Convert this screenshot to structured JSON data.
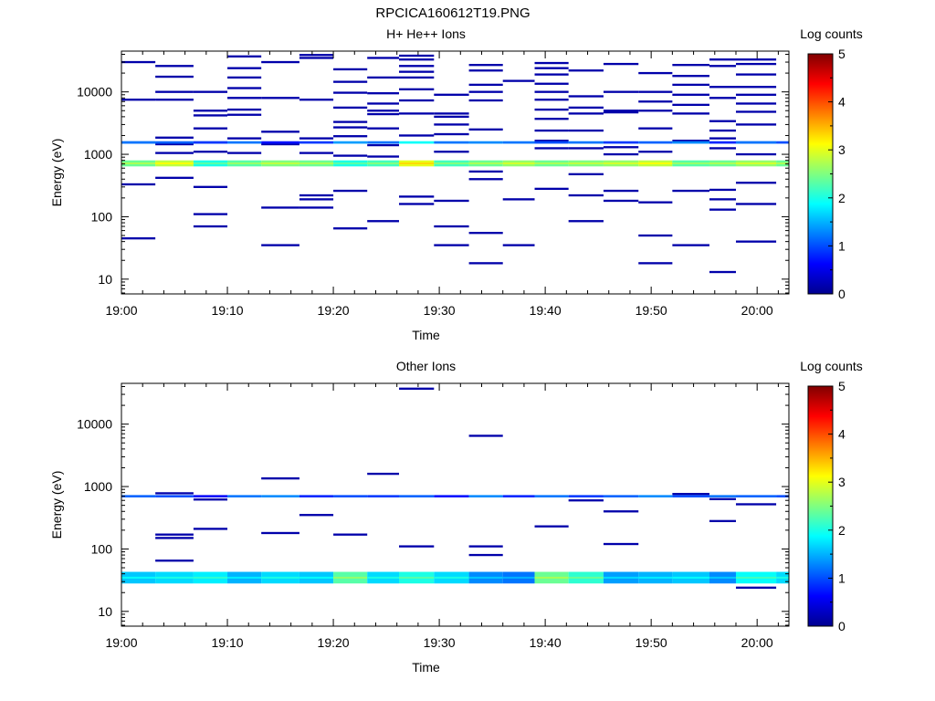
{
  "figure": {
    "title": "RPCICA160612T19.PNG"
  },
  "chart_data": [
    {
      "type": "heatmap",
      "title": "H+ He++ Ions",
      "xlabel": "Time",
      "ylabel": "Energy (eV)",
      "x_ticks": [
        "19:00",
        "19:10",
        "19:20",
        "19:30",
        "19:40",
        "19:50",
        "20:00"
      ],
      "x_range_minutes": [
        0,
        63
      ],
      "y_scale": "log",
      "y_ticks": [
        "10",
        "100",
        "1000",
        "10000"
      ],
      "y_range": [
        5.8,
        45000
      ],
      "colorbar": {
        "label": "Log counts",
        "ticks": [
          "0",
          "1",
          "2",
          "3",
          "4",
          "5"
        ],
        "range": [
          0,
          5
        ],
        "colormap": "jet"
      },
      "band": {
        "energy_range": [
          640,
          800
        ],
        "log_counts_by_bin": [
          2.4,
          2.8,
          2.0,
          2.3,
          2.5,
          2.4,
          2.0,
          2.2,
          3.0,
          2.2,
          2.4,
          2.6,
          2.4,
          2.5,
          2.6,
          2.8,
          2.3,
          2.4,
          2.6,
          2.4
        ]
      },
      "line_1550": {
        "energy_range": [
          1480,
          1620
        ],
        "log_counts_by_bin": [
          1.2,
          1.1,
          0.9,
          1.2,
          0.7,
          0.9,
          1.4,
          1.2,
          1.9,
          1.2,
          1.3,
          1.2,
          1.0,
          1.2,
          0.9,
          1.1,
          1.3,
          0.8,
          1.2,
          1.0
        ]
      },
      "time_bin_edges_minutes": [
        0,
        3.2,
        6.8,
        10.0,
        13.2,
        16.8,
        20.0,
        23.2,
        26.2,
        29.5,
        32.8,
        36.0,
        39.0,
        42.2,
        45.5,
        48.8,
        52.0,
        55.5,
        58.0,
        61.8,
        63.0
      ],
      "sparse_counts": [
        [
          0,
          30000
        ],
        [
          0,
          7500
        ],
        [
          0,
          1550
        ],
        [
          0,
          330
        ],
        [
          0,
          45
        ],
        [
          1,
          26000
        ],
        [
          1,
          17500
        ],
        [
          1,
          10000
        ],
        [
          1,
          7500
        ],
        [
          1,
          1850
        ],
        [
          1,
          1450
        ],
        [
          1,
          1050
        ],
        [
          1,
          420
        ],
        [
          2,
          10000
        ],
        [
          2,
          5000
        ],
        [
          2,
          4200
        ],
        [
          2,
          2600
        ],
        [
          2,
          1550
        ],
        [
          2,
          1100
        ],
        [
          2,
          300
        ],
        [
          2,
          110
        ],
        [
          2,
          70
        ],
        [
          3,
          37000
        ],
        [
          3,
          24000
        ],
        [
          3,
          17000
        ],
        [
          3,
          11500
        ],
        [
          3,
          8000
        ],
        [
          3,
          5200
        ],
        [
          3,
          4300
        ],
        [
          3,
          1800
        ],
        [
          3,
          1050
        ],
        [
          4,
          30000
        ],
        [
          4,
          8000
        ],
        [
          4,
          2300
        ],
        [
          4,
          1450
        ],
        [
          4,
          140
        ],
        [
          4,
          35
        ],
        [
          5,
          39000
        ],
        [
          5,
          35000
        ],
        [
          5,
          7500
        ],
        [
          5,
          1800
        ],
        [
          5,
          1050
        ],
        [
          5,
          220
        ],
        [
          5,
          190
        ],
        [
          5,
          140
        ],
        [
          6,
          23000
        ],
        [
          6,
          14500
        ],
        [
          6,
          9700
        ],
        [
          6,
          5600
        ],
        [
          6,
          3300
        ],
        [
          6,
          2700
        ],
        [
          6,
          1950
        ],
        [
          6,
          950
        ],
        [
          6,
          260
        ],
        [
          6,
          65
        ],
        [
          7,
          35000
        ],
        [
          7,
          17000
        ],
        [
          7,
          9500
        ],
        [
          7,
          6500
        ],
        [
          7,
          5000
        ],
        [
          7,
          4400
        ],
        [
          7,
          2600
        ],
        [
          7,
          1400
        ],
        [
          7,
          920
        ],
        [
          7,
          85
        ],
        [
          8,
          38000
        ],
        [
          8,
          33000
        ],
        [
          8,
          26000
        ],
        [
          8,
          21000
        ],
        [
          8,
          17000
        ],
        [
          8,
          11000
        ],
        [
          8,
          7300
        ],
        [
          8,
          4500
        ],
        [
          8,
          2000
        ],
        [
          8,
          210
        ],
        [
          8,
          160
        ],
        [
          9,
          9000
        ],
        [
          9,
          4500
        ],
        [
          9,
          4000
        ],
        [
          9,
          3000
        ],
        [
          9,
          2100
        ],
        [
          9,
          1100
        ],
        [
          9,
          180
        ],
        [
          9,
          70
        ],
        [
          9,
          35
        ],
        [
          10,
          27000
        ],
        [
          10,
          22000
        ],
        [
          10,
          13000
        ],
        [
          10,
          10000
        ],
        [
          10,
          7300
        ],
        [
          10,
          2500
        ],
        [
          10,
          530
        ],
        [
          10,
          400
        ],
        [
          10,
          55
        ],
        [
          10,
          18
        ],
        [
          11,
          15000
        ],
        [
          11,
          190
        ],
        [
          11,
          35
        ],
        [
          12,
          29000
        ],
        [
          12,
          24000
        ],
        [
          12,
          19000
        ],
        [
          12,
          13500
        ],
        [
          12,
          10000
        ],
        [
          12,
          7500
        ],
        [
          12,
          5200
        ],
        [
          12,
          3700
        ],
        [
          12,
          2400
        ],
        [
          12,
          1650
        ],
        [
          12,
          1250
        ],
        [
          12,
          280
        ],
        [
          13,
          22000
        ],
        [
          13,
          8500
        ],
        [
          13,
          5600
        ],
        [
          13,
          4500
        ],
        [
          13,
          2400
        ],
        [
          13,
          1250
        ],
        [
          13,
          480
        ],
        [
          13,
          220
        ],
        [
          13,
          85
        ],
        [
          14,
          28000
        ],
        [
          14,
          10000
        ],
        [
          14,
          5000
        ],
        [
          14,
          4700
        ],
        [
          14,
          1300
        ],
        [
          14,
          1000
        ],
        [
          14,
          260
        ],
        [
          14,
          180
        ],
        [
          15,
          20000
        ],
        [
          15,
          10000
        ],
        [
          15,
          7000
        ],
        [
          15,
          5000
        ],
        [
          15,
          2600
        ],
        [
          15,
          1100
        ],
        [
          15,
          170
        ],
        [
          15,
          50
        ],
        [
          15,
          18
        ],
        [
          16,
          27000
        ],
        [
          16,
          18000
        ],
        [
          16,
          13000
        ],
        [
          16,
          9000
        ],
        [
          16,
          6200
        ],
        [
          16,
          4500
        ],
        [
          16,
          1650
        ],
        [
          16,
          260
        ],
        [
          16,
          35
        ],
        [
          17,
          33000
        ],
        [
          17,
          26000
        ],
        [
          17,
          12000
        ],
        [
          17,
          8000
        ],
        [
          17,
          3400
        ],
        [
          17,
          2400
        ],
        [
          17,
          1800
        ],
        [
          17,
          1250
        ],
        [
          17,
          270
        ],
        [
          17,
          190
        ],
        [
          17,
          130
        ],
        [
          17,
          13
        ],
        [
          18,
          33000
        ],
        [
          18,
          28000
        ],
        [
          18,
          19000
        ],
        [
          18,
          12000
        ],
        [
          18,
          9000
        ],
        [
          18,
          6500
        ],
        [
          18,
          4800
        ],
        [
          18,
          3000
        ],
        [
          18,
          1550
        ],
        [
          18,
          1000
        ],
        [
          18,
          350
        ],
        [
          18,
          160
        ],
        [
          18,
          40
        ]
      ]
    },
    {
      "type": "heatmap",
      "title": "Other Ions",
      "xlabel": "Time",
      "ylabel": "Energy (eV)",
      "x_ticks": [
        "19:00",
        "19:10",
        "19:20",
        "19:30",
        "19:40",
        "19:50",
        "20:00"
      ],
      "x_range_minutes": [
        0,
        63
      ],
      "y_scale": "log",
      "y_ticks": [
        "10",
        "100",
        "1000",
        "10000"
      ],
      "y_range": [
        5.8,
        45000
      ],
      "colorbar": {
        "label": "Log counts",
        "ticks": [
          "0",
          "1",
          "2",
          "3",
          "4",
          "5"
        ],
        "range": [
          0,
          5
        ],
        "colormap": "jet"
      },
      "band": {
        "energy_range": [
          28,
          43
        ],
        "log_counts_by_bin": [
          1.6,
          1.7,
          1.8,
          1.5,
          1.7,
          1.6,
          2.3,
          1.7,
          2.0,
          1.7,
          1.3,
          1.2,
          2.4,
          2.1,
          1.4,
          1.5,
          1.6,
          1.3,
          1.9,
          1.7
        ]
      },
      "line_700": {
        "energy_range": [
          670,
          730
        ],
        "log_counts_by_bin": [
          1.1,
          1.0,
          0.6,
          1.2,
          1.3,
          0.8,
          1.0,
          0.9,
          1.1,
          0.7,
          1.3,
          0.8,
          1.2,
          0.9,
          1.1,
          1.3,
          1.0,
          1.2,
          1.1,
          1.0
        ]
      },
      "time_bin_edges_minutes": [
        0,
        3.2,
        6.8,
        10.0,
        13.2,
        16.8,
        20.0,
        23.2,
        26.2,
        29.5,
        32.8,
        36.0,
        39.0,
        42.2,
        45.5,
        48.8,
        52.0,
        55.5,
        58.0,
        61.8,
        63.0
      ],
      "sparse_counts": [
        [
          1,
          780
        ],
        [
          1,
          170
        ],
        [
          1,
          150
        ],
        [
          1,
          65
        ],
        [
          2,
          620
        ],
        [
          2,
          210
        ],
        [
          4,
          1350
        ],
        [
          4,
          180
        ],
        [
          5,
          350
        ],
        [
          6,
          170
        ],
        [
          7,
          1600
        ],
        [
          8,
          37000
        ],
        [
          8,
          110
        ],
        [
          10,
          6500
        ],
        [
          10,
          110
        ],
        [
          10,
          80
        ],
        [
          12,
          230
        ],
        [
          13,
          600
        ],
        [
          14,
          400
        ],
        [
          14,
          120
        ],
        [
          16,
          760
        ],
        [
          17,
          630
        ],
        [
          17,
          280
        ],
        [
          18,
          520
        ],
        [
          18,
          24
        ]
      ]
    }
  ]
}
